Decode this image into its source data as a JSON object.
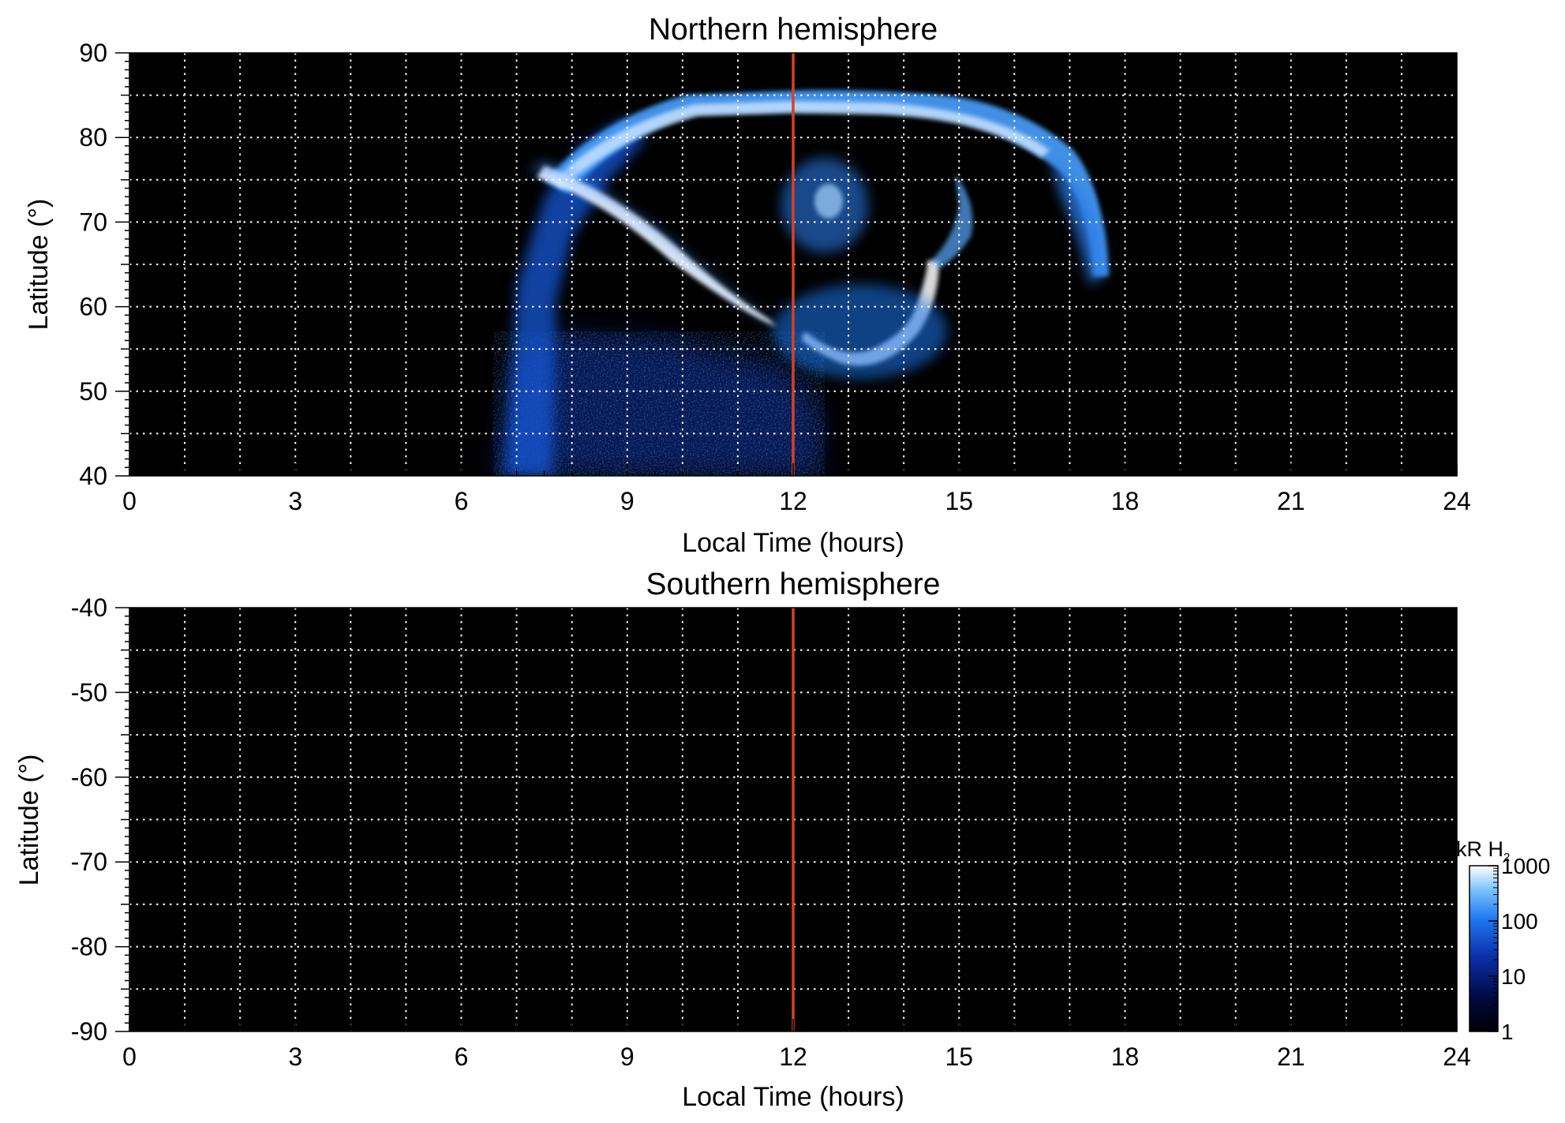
{
  "chart_data": [
    {
      "type": "heatmap",
      "title": "Northern hemisphere",
      "xlabel": "Local Time (hours)",
      "ylabel": "Latitude (°)",
      "xlim": [
        0,
        24
      ],
      "ylim": [
        40,
        90
      ],
      "xticks": [
        "0",
        "3",
        "6",
        "9",
        "12",
        "15",
        "18",
        "21",
        "24"
      ],
      "yticks": [
        "40",
        "50",
        "60",
        "70",
        "80",
        "90"
      ],
      "grid": true,
      "noon_line_local_time": 12,
      "noon_line_color": "#d9411e",
      "background_color": "#000000",
      "emission_features": [
        {
          "name": "main oval",
          "local_time": [
            6.6,
            17.6
          ],
          "latitude": [
            62,
            85
          ]
        },
        {
          "name": "dawn arc",
          "local_time": [
            7.5,
            11.6
          ],
          "latitude": [
            58,
            74
          ]
        },
        {
          "name": "noon spot",
          "local_time": [
            12.2,
            15.5
          ],
          "latitude": [
            51,
            63
          ]
        }
      ]
    },
    {
      "type": "heatmap",
      "title": "Southern hemisphere",
      "xlabel": "Local Time (hours)",
      "ylabel": "Latitude (°)",
      "xlim": [
        0,
        24
      ],
      "ylim": [
        -90,
        -40
      ],
      "xticks": [
        "0",
        "3",
        "6",
        "9",
        "12",
        "15",
        "18",
        "21",
        "24"
      ],
      "yticks": [
        "-40",
        "-50",
        "-60",
        "-70",
        "-80",
        "-90"
      ],
      "grid": true,
      "noon_line_local_time": 12,
      "noon_line_color": "#d9411e",
      "background_color": "#000000"
    }
  ],
  "colorbar": {
    "label": "kR H",
    "label_subscript": "2",
    "scale": "log",
    "range": [
      1,
      1000
    ],
    "ticks": [
      "1000",
      "100",
      "10",
      "1"
    ],
    "colors": [
      "#000000",
      "#000a40",
      "#0a2fa8",
      "#1e78f0",
      "#78c0ff",
      "#ffffff"
    ]
  }
}
